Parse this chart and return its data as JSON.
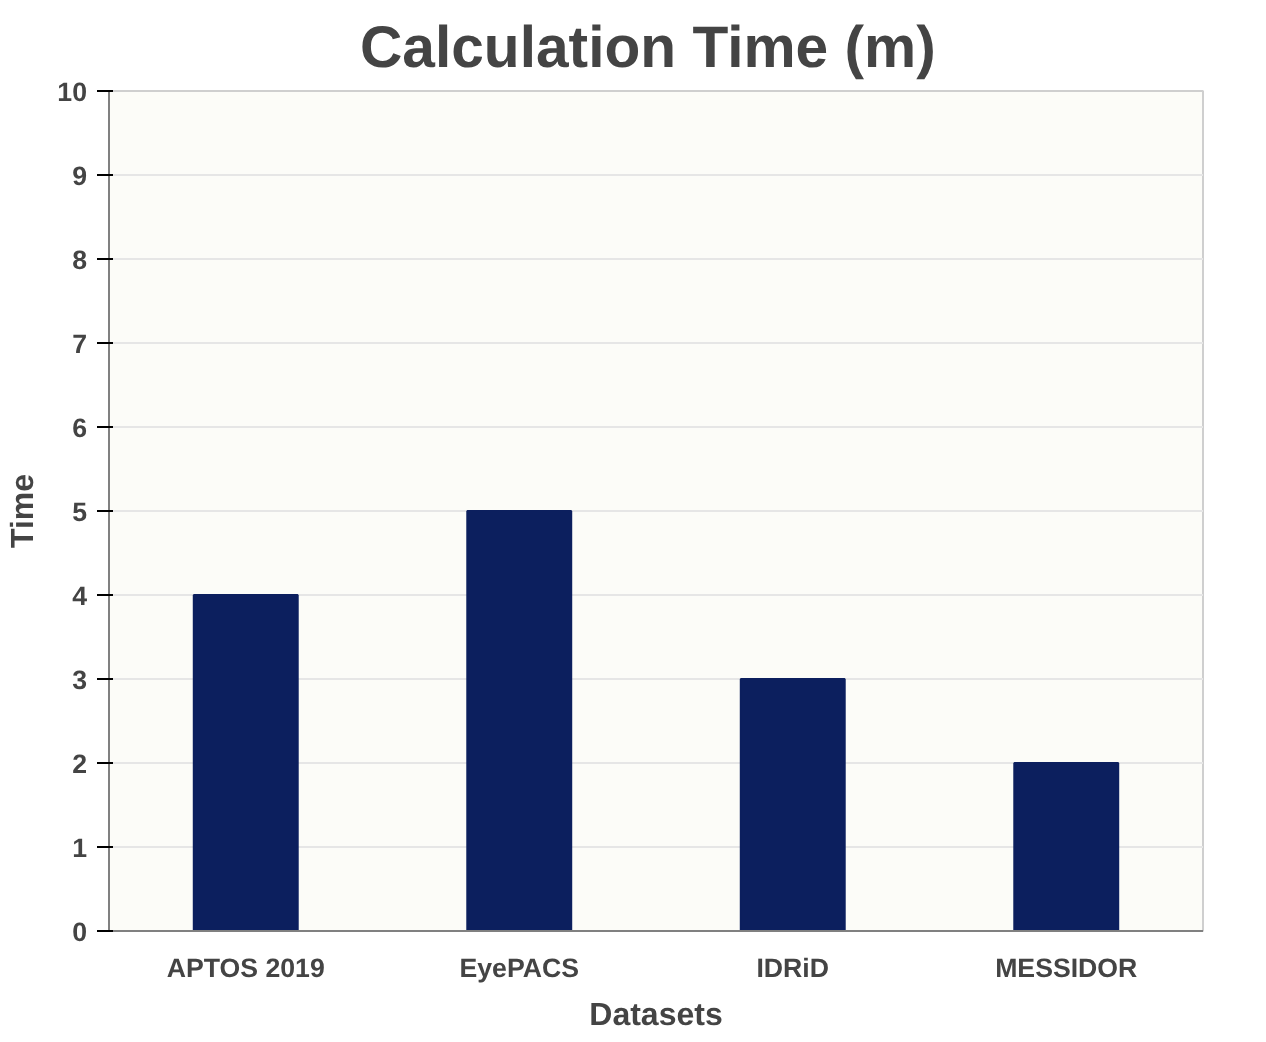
{
  "chart_data": {
    "type": "bar",
    "title": "Calculation Time  (m)",
    "xlabel": "Datasets",
    "ylabel": "Time",
    "categories": [
      "APTOS 2019",
      "EyePACS",
      "IDRiD",
      "MESSIDOR"
    ],
    "values": [
      4,
      5,
      3,
      2
    ],
    "color": "#0c1f5e",
    "ylim": [
      0,
      10
    ],
    "yticks": [
      0,
      1,
      2,
      3,
      4,
      5,
      6,
      7,
      8,
      9,
      10
    ],
    "grid": "y"
  }
}
